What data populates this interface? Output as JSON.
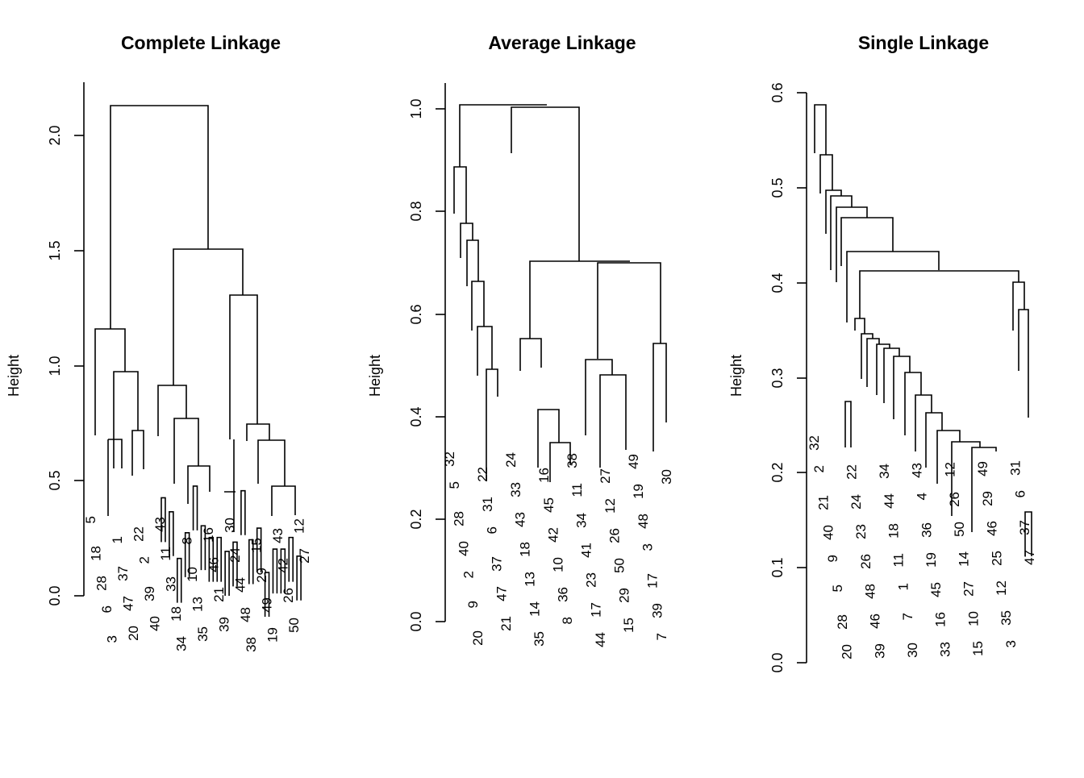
{
  "chart_data": [
    {
      "type": "dendrogram",
      "title": "Complete Linkage",
      "ylabel": "Height",
      "ylim": [
        0,
        2.2
      ],
      "yticks": [
        0.0,
        0.5,
        1.0,
        1.5,
        2.0
      ],
      "ytick_labels": [
        "0.0",
        "0.5",
        "1.0",
        "1.5",
        "2.0"
      ],
      "merges": [
        {
          "x1": 1,
          "x2": 2,
          "h": 0.42
        },
        {
          "x1": 3,
          "x2": 4,
          "h": 0.36
        },
        {
          "x1": 5,
          "x2": 6,
          "h": 0.16
        },
        {
          "x1": 7,
          "x2": 8,
          "h": 0.27
        },
        {
          "x1": 9,
          "x2": 10,
          "h": 0.47
        },
        {
          "x1": 11,
          "x2": 12,
          "h": 0.3
        },
        {
          "x1": 13,
          "x2": 14,
          "h": 0.25
        },
        {
          "x1": 15,
          "x2": 16,
          "h": 0.25
        },
        {
          "x1": 17,
          "x2": 18,
          "h": 0.19
        },
        {
          "x1": 19,
          "x2": 20,
          "h": 0.23
        },
        {
          "x1": 21,
          "x2": 22,
          "h": 0.45
        },
        {
          "x1": 23,
          "x2": 24,
          "h": 0.24
        },
        {
          "x1": 25,
          "x2": 26,
          "h": 0.29
        },
        {
          "x1": 27,
          "x2": 28,
          "h": 0.1
        },
        {
          "x1": 29,
          "x2": 30,
          "h": 0.2
        },
        {
          "x1": 31,
          "x2": 32,
          "h": 0.2
        },
        {
          "x1": 33,
          "x2": 34,
          "h": 0.25
        },
        {
          "x1": 35,
          "x2": 36,
          "h": 0.17
        }
      ],
      "leaf_labels": [
        "5",
        "18",
        "28",
        "6",
        "3",
        "1",
        "37",
        "47",
        "20",
        "22",
        "2",
        "39",
        "40",
        "43",
        "11",
        "33",
        "18",
        "34",
        "8",
        "10",
        "13",
        "35",
        "16",
        "46",
        "21",
        "39",
        "30",
        "24",
        "44",
        "48",
        "38",
        "15",
        "29",
        "49",
        "19",
        "43",
        "42",
        "26",
        "50",
        "12",
        "27"
      ]
    },
    {
      "type": "dendrogram",
      "title": "Average Linkage",
      "ylabel": "Height",
      "ylim": [
        0,
        1.0
      ],
      "yticks": [
        0.0,
        0.2,
        0.4,
        0.6,
        0.8,
        1.0
      ],
      "ytick_labels": [
        "0.0",
        "0.2",
        "0.4",
        "0.6",
        "0.8",
        "1.0"
      ],
      "leaf_labels": [
        "32",
        "5",
        "28",
        "40",
        "2",
        "9",
        "20",
        "22",
        "31",
        "6",
        "37",
        "47",
        "21",
        "24",
        "33",
        "43",
        "18",
        "13",
        "14",
        "35",
        "16",
        "45",
        "42",
        "10",
        "36",
        "8",
        "38",
        "11",
        "34",
        "41",
        "23",
        "17",
        "44",
        "27",
        "12",
        "26",
        "50",
        "29",
        "15",
        "49",
        "19",
        "48",
        "3",
        "17",
        "39",
        "7",
        "30"
      ]
    },
    {
      "type": "dendrogram",
      "title": "Single Linkage",
      "ylabel": "Height",
      "ylim": [
        0,
        0.6
      ],
      "yticks": [
        0.0,
        0.1,
        0.2,
        0.3,
        0.4,
        0.5,
        0.6
      ],
      "ytick_labels": [
        "0.0",
        "0.1",
        "0.2",
        "0.3",
        "0.4",
        "0.5",
        "0.6"
      ],
      "leaf_labels": [
        "32",
        "2",
        "21",
        "40",
        "9",
        "5",
        "28",
        "20",
        "22",
        "24",
        "23",
        "26",
        "48",
        "46",
        "39",
        "34",
        "44",
        "18",
        "11",
        "1",
        "7",
        "30",
        "43",
        "4",
        "36",
        "19",
        "45",
        "16",
        "33",
        "12",
        "26",
        "50",
        "14",
        "27",
        "10",
        "15",
        "49",
        "29",
        "46",
        "25",
        "12",
        "35",
        "3",
        "31",
        "6",
        "37",
        "47"
      ]
    }
  ]
}
